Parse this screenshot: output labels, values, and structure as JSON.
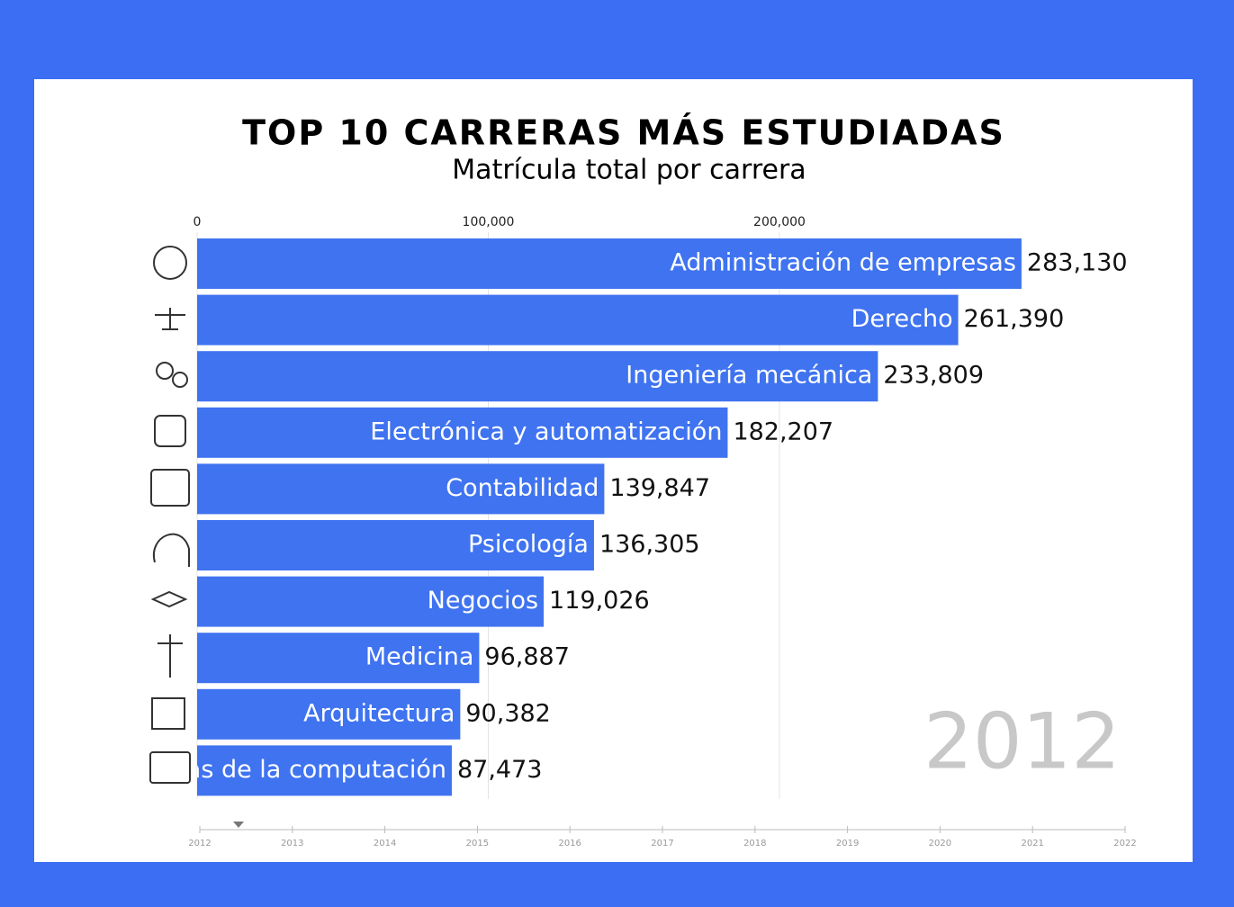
{
  "chart_data": {
    "type": "barh",
    "title": "TOP 10 CARRERAS MÁS ESTUDIADAS",
    "subtitle": "Matrícula total por carrera",
    "categories": [
      "Administración de empresas",
      "Derecho",
      "Ingeniería mecánica",
      "Electrónica y automatización",
      "Contabilidad",
      "Psicología",
      "Negocios",
      "Medicina",
      "Arquitectura",
      "as de la computación"
    ],
    "values": [
      283130,
      261390,
      233809,
      182207,
      139847,
      136305,
      119026,
      96887,
      90382,
      87473
    ],
    "value_labels": [
      "283,130",
      "261,390",
      "233,809",
      "182,207",
      "139,847",
      "136,305",
      "119,026",
      "96,887",
      "90,382",
      "87,473"
    ],
    "color": "#3f73f0",
    "xlim": [
      0,
      300000
    ],
    "xticks": [
      0,
      {
        "value": 100000,
        "label": "100,000"
      },
      {
        "value": 200000,
        "label": "200,000"
      }
    ],
    "grid": true,
    "annotation": "2012",
    "timeline": [
      2012,
      2013,
      2014,
      2015,
      2016,
      2017,
      2018,
      2019,
      2020,
      2021,
      2022
    ]
  }
}
